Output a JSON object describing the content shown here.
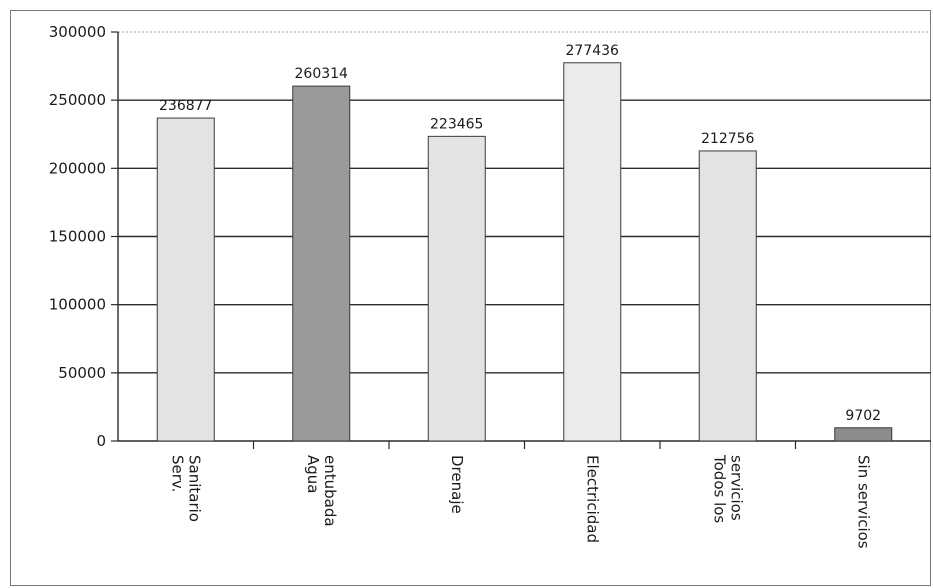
{
  "chart_data": {
    "type": "bar",
    "title": "",
    "xlabel": "",
    "ylabel": "",
    "ylim": [
      0,
      300000
    ],
    "yticks": [
      0,
      50000,
      100000,
      150000,
      200000,
      250000,
      300000
    ],
    "ytick_labels": [
      "0",
      "50000",
      "100000",
      "150000",
      "200000",
      "250000",
      "300000"
    ],
    "grid": true,
    "legend": "none",
    "categories": [
      [
        "Serv.",
        "Sanitario"
      ],
      [
        "Agua",
        "entubada"
      ],
      [
        "Drenaje"
      ],
      [
        "Electricidad"
      ],
      [
        "Todos los",
        "servicios"
      ],
      [
        "Sin servicios"
      ]
    ],
    "values": [
      236877,
      260314,
      223465,
      277436,
      212756,
      9702
    ],
    "data_labels": [
      "236877",
      "260314",
      "223465",
      "277436",
      "212756",
      "9702"
    ],
    "bar_colors": [
      "#e3e3e3",
      "#9a9a9a",
      "#e3e3e3",
      "#ebebeb",
      "#e3e3e3",
      "#8c8c8c"
    ]
  }
}
